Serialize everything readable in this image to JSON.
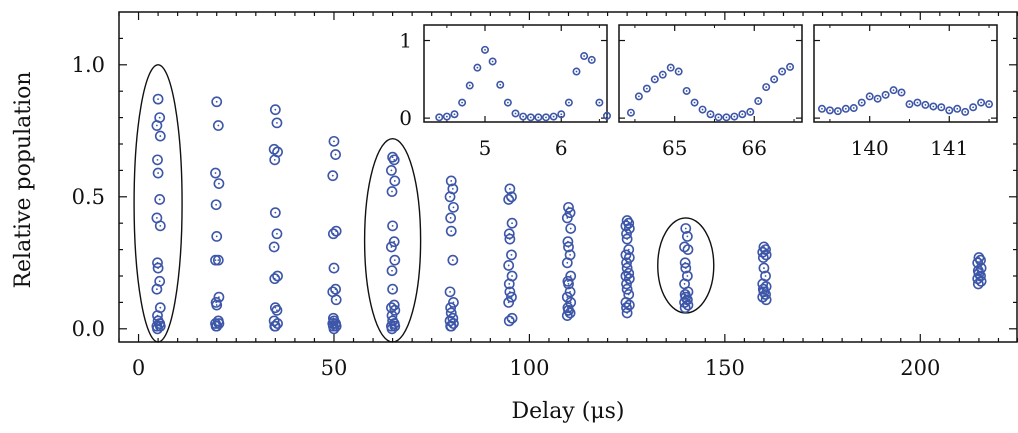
{
  "chart_data": {
    "type": "scatter",
    "xlabel": "Delay (μs)",
    "ylabel": "Relative population",
    "xlim": [
      -5,
      225
    ],
    "ylim": [
      -0.05,
      1.2
    ],
    "x_ticks": [
      0,
      50,
      100,
      150,
      200
    ],
    "x_tick_labels": [
      "0",
      "50",
      "100",
      "150",
      "200"
    ],
    "y_ticks": [
      0.0,
      0.5,
      1.0
    ],
    "y_tick_labels": [
      "0.0",
      "0.5",
      "1.0"
    ],
    "grid": false,
    "marker": "hollow-circle-with-center-dot",
    "series_color": "#3d56a8",
    "highlight_ellipses": [
      {
        "x_center": 5,
        "y_range": [
          -0.05,
          1.0
        ]
      },
      {
        "x_center": 65,
        "y_range": [
          -0.05,
          0.72
        ]
      },
      {
        "x_center": 140,
        "y_range": [
          0.06,
          0.42
        ]
      }
    ],
    "groups": [
      {
        "x": 5,
        "values": [
          0.87,
          0.8,
          0.77,
          0.73,
          0.64,
          0.59,
          0.49,
          0.42,
          0.39,
          0.25,
          0.23,
          0.18,
          0.15,
          0.08,
          0.05,
          0.03,
          0.02,
          0.01,
          0.01,
          0.0
        ]
      },
      {
        "x": 20,
        "values": [
          0.86,
          0.77,
          0.59,
          0.55,
          0.47,
          0.35,
          0.26,
          0.26,
          0.12,
          0.1,
          0.09,
          0.03,
          0.02,
          0.02,
          0.01,
          0.01
        ]
      },
      {
        "x": 35,
        "values": [
          0.83,
          0.78,
          0.68,
          0.67,
          0.64,
          0.44,
          0.36,
          0.31,
          0.2,
          0.19,
          0.08,
          0.07,
          0.03,
          0.02,
          0.01,
          0.01
        ]
      },
      {
        "x": 50,
        "values": [
          0.71,
          0.66,
          0.58,
          0.37,
          0.36,
          0.23,
          0.15,
          0.14,
          0.11,
          0.04,
          0.03,
          0.02,
          0.02,
          0.01,
          0.01,
          0.0
        ]
      },
      {
        "x": 65,
        "values": [
          0.65,
          0.64,
          0.6,
          0.56,
          0.52,
          0.39,
          0.33,
          0.31,
          0.26,
          0.22,
          0.15,
          0.09,
          0.08,
          0.07,
          0.05,
          0.03,
          0.02,
          0.01,
          0.01,
          0.0
        ]
      },
      {
        "x": 80,
        "values": [
          0.56,
          0.53,
          0.5,
          0.46,
          0.42,
          0.37,
          0.26,
          0.14,
          0.1,
          0.08,
          0.06,
          0.04,
          0.03,
          0.02,
          0.01,
          0.01
        ]
      },
      {
        "x": 95,
        "values": [
          0.53,
          0.5,
          0.49,
          0.4,
          0.36,
          0.34,
          0.28,
          0.24,
          0.2,
          0.17,
          0.14,
          0.12,
          0.1,
          0.04,
          0.03
        ]
      },
      {
        "x": 110,
        "values": [
          0.46,
          0.44,
          0.42,
          0.38,
          0.33,
          0.31,
          0.28,
          0.25,
          0.2,
          0.18,
          0.17,
          0.14,
          0.12,
          0.1,
          0.08,
          0.07,
          0.06,
          0.05
        ]
      },
      {
        "x": 125,
        "values": [
          0.41,
          0.4,
          0.39,
          0.38,
          0.36,
          0.34,
          0.3,
          0.28,
          0.27,
          0.25,
          0.23,
          0.21,
          0.2,
          0.19,
          0.17,
          0.15,
          0.13,
          0.1,
          0.09,
          0.08,
          0.06
        ]
      },
      {
        "x": 140,
        "values": [
          0.38,
          0.35,
          0.31,
          0.3,
          0.25,
          0.23,
          0.2,
          0.17,
          0.14,
          0.13,
          0.12,
          0.11,
          0.1,
          0.09,
          0.08
        ]
      },
      {
        "x": 160,
        "values": [
          0.31,
          0.3,
          0.29,
          0.28,
          0.27,
          0.23,
          0.2,
          0.17,
          0.16,
          0.15,
          0.14,
          0.13,
          0.12,
          0.11
        ]
      },
      {
        "x": 215,
        "values": [
          0.27,
          0.26,
          0.25,
          0.23,
          0.22,
          0.21,
          0.2,
          0.19,
          0.18,
          0.17
        ]
      }
    ],
    "insets": [
      {
        "xlim": [
          4.2,
          6.6
        ],
        "ylim": [
          -0.05,
          1.2
        ],
        "x_ticks": [
          5,
          6
        ],
        "x_tick_labels": [
          "5",
          "6"
        ],
        "y_ticks": [
          0,
          1
        ],
        "y_tick_labels": [
          "0",
          "1"
        ],
        "x": [
          4.4,
          4.5,
          4.6,
          4.7,
          4.8,
          4.9,
          5.0,
          5.1,
          5.2,
          5.3,
          5.4,
          5.5,
          5.6,
          5.7,
          5.8,
          5.9,
          6.0,
          6.1,
          6.2,
          6.3,
          6.4,
          6.5,
          6.6
        ],
        "y": [
          0.01,
          0.02,
          0.05,
          0.2,
          0.42,
          0.65,
          0.88,
          0.73,
          0.43,
          0.2,
          0.06,
          0.02,
          0.01,
          0.01,
          0.01,
          0.02,
          0.05,
          0.2,
          0.6,
          0.8,
          0.75,
          0.2,
          0.03
        ]
      },
      {
        "xlim": [
          64.3,
          66.6
        ],
        "ylim": [
          -0.05,
          1.2
        ],
        "x_ticks": [
          65,
          66
        ],
        "x_tick_labels": [
          "65",
          "66"
        ],
        "y_ticks": [
          0,
          1
        ],
        "y_tick_labels": [
          "",
          ""
        ],
        "x": [
          64.45,
          64.55,
          64.65,
          64.75,
          64.85,
          64.95,
          65.05,
          65.15,
          65.25,
          65.35,
          65.45,
          65.55,
          65.65,
          65.75,
          65.85,
          65.95,
          66.05,
          66.15,
          66.25,
          66.35,
          66.45
        ],
        "y": [
          0.07,
          0.28,
          0.38,
          0.5,
          0.56,
          0.65,
          0.6,
          0.35,
          0.2,
          0.11,
          0.05,
          0.01,
          0.01,
          0.02,
          0.05,
          0.08,
          0.22,
          0.4,
          0.5,
          0.6,
          0.66
        ]
      },
      {
        "xlim": [
          139.3,
          141.6
        ],
        "ylim": [
          -0.05,
          1.2
        ],
        "x_ticks": [
          140,
          141
        ],
        "x_tick_labels": [
          "140",
          "141"
        ],
        "y_ticks": [
          0,
          1
        ],
        "y_tick_labels": [
          "",
          ""
        ],
        "x": [
          139.4,
          139.5,
          139.6,
          139.7,
          139.8,
          139.9,
          140.0,
          140.1,
          140.2,
          140.3,
          140.4,
          140.5,
          140.6,
          140.7,
          140.8,
          140.9,
          141.0,
          141.1,
          141.2,
          141.3,
          141.4,
          141.5
        ],
        "y": [
          0.12,
          0.1,
          0.09,
          0.12,
          0.13,
          0.2,
          0.28,
          0.25,
          0.3,
          0.36,
          0.33,
          0.18,
          0.2,
          0.17,
          0.15,
          0.14,
          0.1,
          0.12,
          0.08,
          0.14,
          0.2,
          0.18
        ]
      }
    ]
  }
}
